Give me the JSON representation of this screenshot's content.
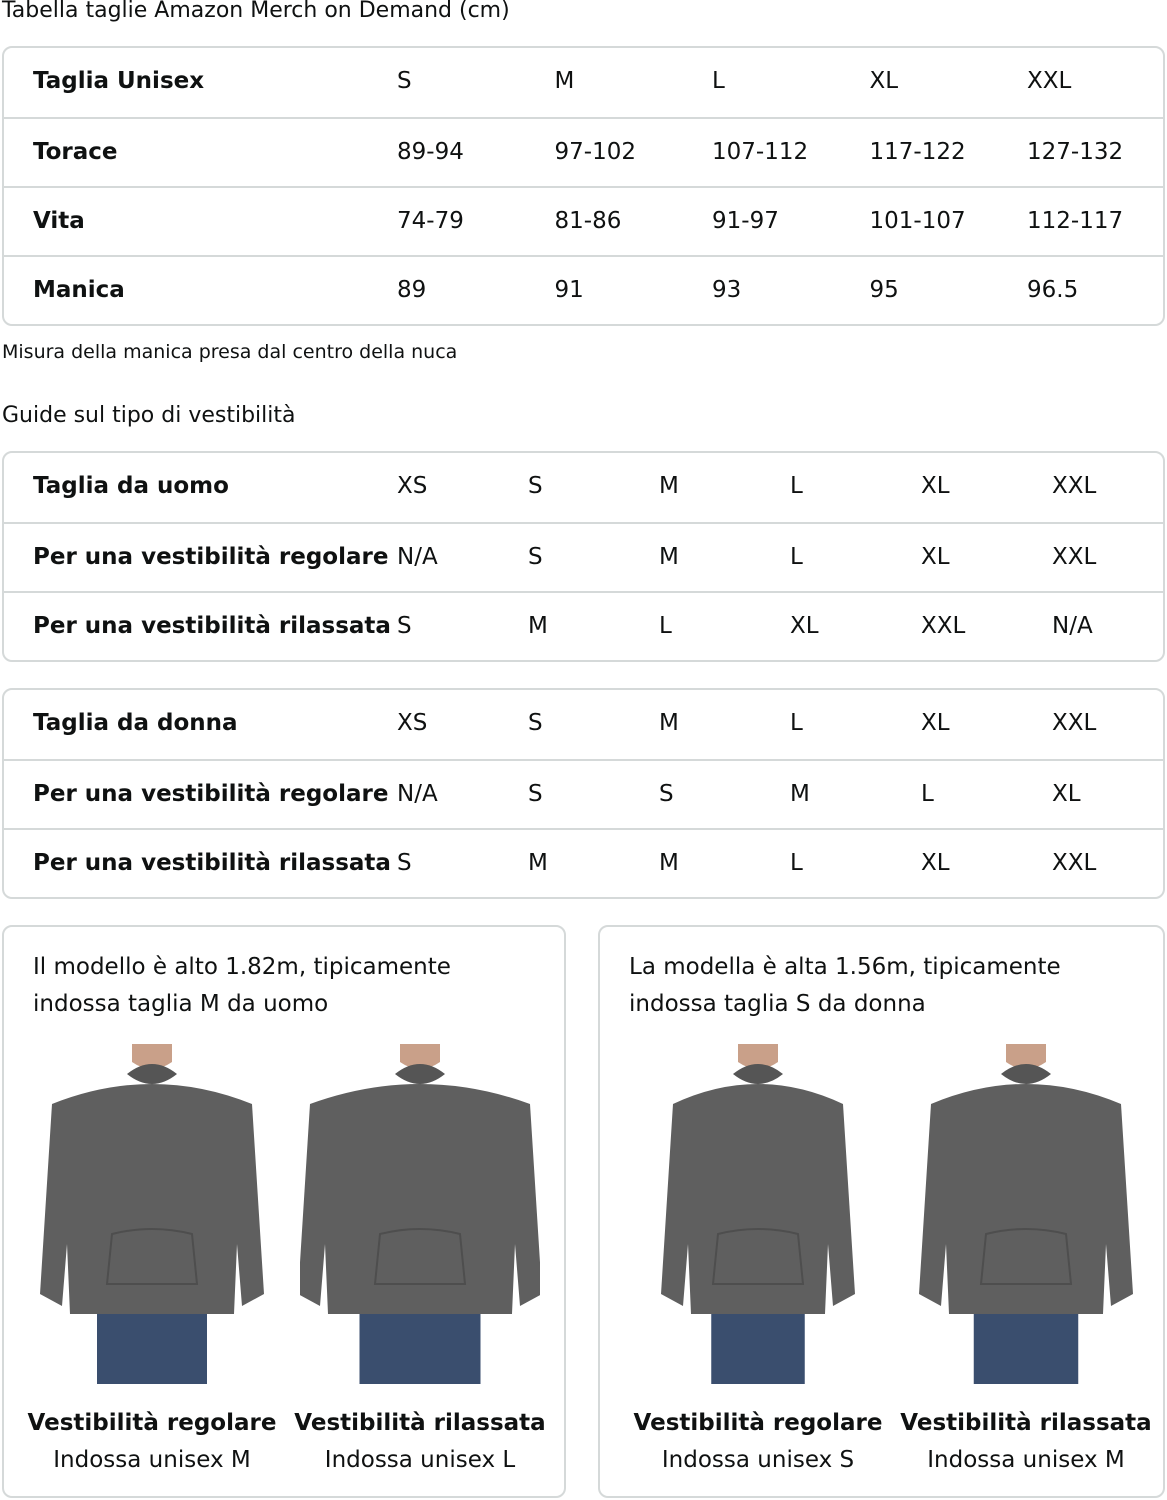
{
  "title": "Tabella taglie Amazon Merch on Demand (cm)",
  "unisex": {
    "header": [
      "Taglia Unisex",
      "S",
      "M",
      "L",
      "XL",
      "XXL"
    ],
    "rows": [
      [
        "Torace",
        "89-94",
        "97-102",
        "107-112",
        "117-122",
        "127-132"
      ],
      [
        "Vita",
        "74-79",
        "81-86",
        "91-97",
        "101-107",
        "112-117"
      ],
      [
        "Manica",
        "89",
        "91",
        "93",
        "95",
        "96.5"
      ]
    ]
  },
  "note": "Misura della manica presa dal centro della nuca",
  "fit_title": "Guide sul tipo di vestibilità",
  "men": [
    [
      "Taglia da uomo",
      "XS",
      "S",
      "M",
      "L",
      "XL",
      "XXL"
    ],
    [
      "Per una vestibilità regolare",
      "N/A",
      "S",
      "M",
      "L",
      "XL",
      "XXL"
    ],
    [
      "Per una vestibilità rilassata",
      "S",
      "M",
      "L",
      "XL",
      "XXL",
      "N/A"
    ]
  ],
  "women": [
    [
      "Taglia da donna",
      "XS",
      "S",
      "M",
      "L",
      "XL",
      "XXL"
    ],
    [
      "Per una vestibilità regolare",
      "N/A",
      "S",
      "S",
      "M",
      "L",
      "XL"
    ],
    [
      "Per una vestibilità rilassata",
      "S",
      "M",
      "M",
      "L",
      "XL",
      "XXL"
    ]
  ],
  "cards": [
    {
      "text1": "Il modello è alto 1.82m, tipicamente",
      "text2": "indossa taglia M da uomo",
      "figs": [
        {
          "fit": "Vestibilità regolare",
          "wear": "Indossa unisex M"
        },
        {
          "fit": "Vestibilità rilassata",
          "wear": "Indossa unisex L"
        }
      ]
    },
    {
      "text1": "La modella è alta 1.56m, tipicamente",
      "text2": "indossa taglia S da donna",
      "figs": [
        {
          "fit": "Vestibilità regolare",
          "wear": "Indossa unisex S"
        },
        {
          "fit": "Vestibilità rilassata",
          "wear": "Indossa unisex M"
        }
      ]
    }
  ],
  "colors": {
    "hoodie": "#5f5f5f",
    "jeans": "#3a4e6e",
    "border": "#d5d9d9"
  }
}
